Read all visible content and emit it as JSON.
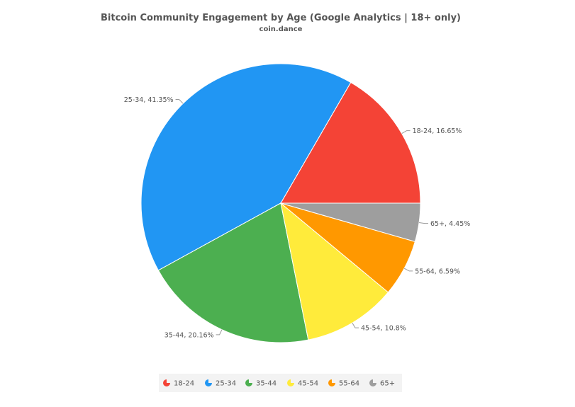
{
  "chart_data": {
    "type": "pie",
    "title": "Bitcoin Community Engagement by Age (Google Analytics | 18+ only)",
    "subtitle": "coin.dance",
    "legend_position": "bottom",
    "slices": [
      {
        "label": "18-24",
        "value": 16.65,
        "display": "18-24, 16.65%",
        "color": "#F44336"
      },
      {
        "label": "25-34",
        "value": 41.35,
        "display": "25-34, 41.35%",
        "color": "#2196F3"
      },
      {
        "label": "35-44",
        "value": 20.16,
        "display": "35-44, 20.16%",
        "color": "#4CAF50"
      },
      {
        "label": "45-54",
        "value": 10.8,
        "display": "45-54, 10.8%",
        "color": "#FFEB3B"
      },
      {
        "label": "55-64",
        "value": 6.59,
        "display": "55-64, 6.59%",
        "color": "#FF9800"
      },
      {
        "label": "65+",
        "value": 4.45,
        "display": "65+, 4.45%",
        "color": "#9E9E9E"
      }
    ]
  }
}
